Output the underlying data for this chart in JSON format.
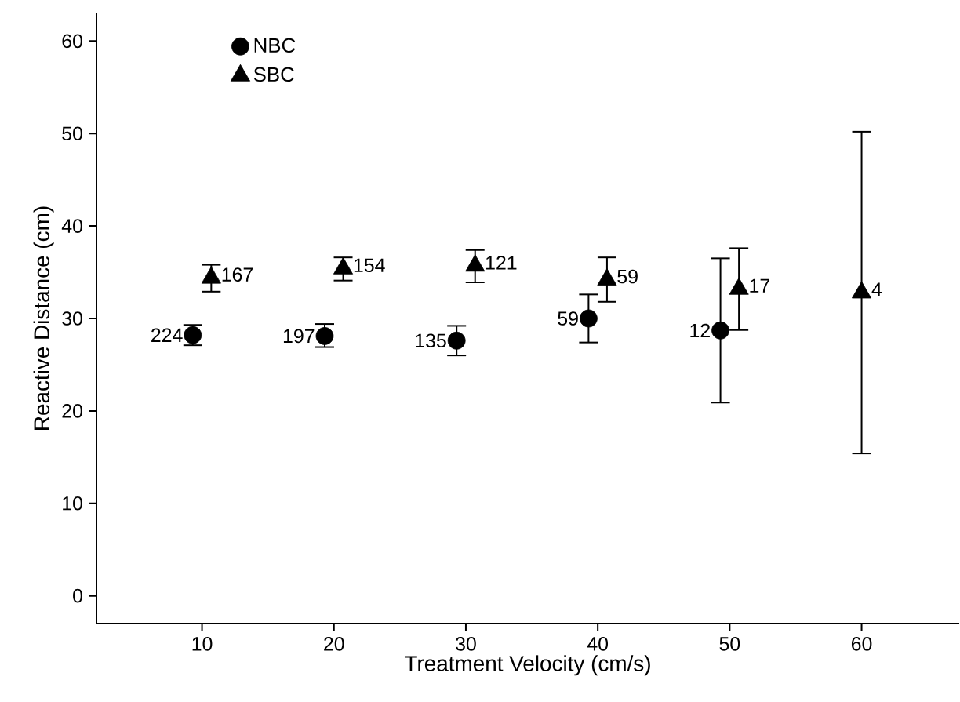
{
  "chart_data": {
    "type": "scatter",
    "xlabel": "Treatment Velocity (cm/s)",
    "ylabel": "Reactive Distance (cm)",
    "xlim": [
      2,
      67.4
    ],
    "ylim": [
      -3,
      63
    ],
    "xticks": [
      10,
      20,
      30,
      40,
      50,
      60
    ],
    "yticks": [
      0,
      10,
      20,
      30,
      40,
      50,
      60
    ],
    "grid": false,
    "legend": "top left",
    "series": [
      {
        "name": "NBC",
        "color": "#000000",
        "marker": "circle",
        "x": [
          9.3,
          19.3,
          29.3,
          39.3,
          49.3
        ],
        "values": [
          28.2,
          28.1,
          27.6,
          30.0,
          28.7
        ],
        "errors": [
          [
            27.1,
            29.3
          ],
          [
            26.9,
            29.4
          ],
          [
            26.0,
            29.2
          ],
          [
            27.4,
            32.6
          ],
          [
            20.9,
            36.5
          ]
        ]
      },
      {
        "name": "SBC",
        "color": "#000000",
        "marker": "triangle",
        "x": [
          10.7,
          20.7,
          30.7,
          40.7,
          50.7,
          60
        ],
        "values": [
          34.4,
          35.4,
          35.7,
          34.2,
          33.2,
          32.8
        ],
        "errors": [
          [
            32.9,
            35.8
          ],
          [
            34.1,
            36.6
          ],
          [
            33.9,
            37.4
          ],
          [
            31.8,
            36.6
          ],
          [
            28.75,
            37.6
          ],
          [
            15.4,
            50.2
          ]
        ]
      }
    ],
    "annotations": [
      {
        "text": "224",
        "x": 9.3,
        "y": 28.2
      },
      {
        "text": "197",
        "x": 19.3,
        "y": 28.1
      },
      {
        "text": "135",
        "x": 29.3,
        "y": 27.6
      },
      {
        "text": "59",
        "x": 39.3,
        "y": 30.0
      },
      {
        "text": "12",
        "x": 49.3,
        "y": 28.7
      },
      {
        "text": "167",
        "x": 10.7,
        "y": 34.4
      },
      {
        "text": "154",
        "x": 20.7,
        "y": 35.4
      },
      {
        "text": "121",
        "x": 30.7,
        "y": 35.7
      },
      {
        "text": "59",
        "x": 40.7,
        "y": 34.2
      },
      {
        "text": "17",
        "x": 50.7,
        "y": 33.2
      },
      {
        "text": "4",
        "x": 60,
        "y": 32.8
      }
    ]
  }
}
